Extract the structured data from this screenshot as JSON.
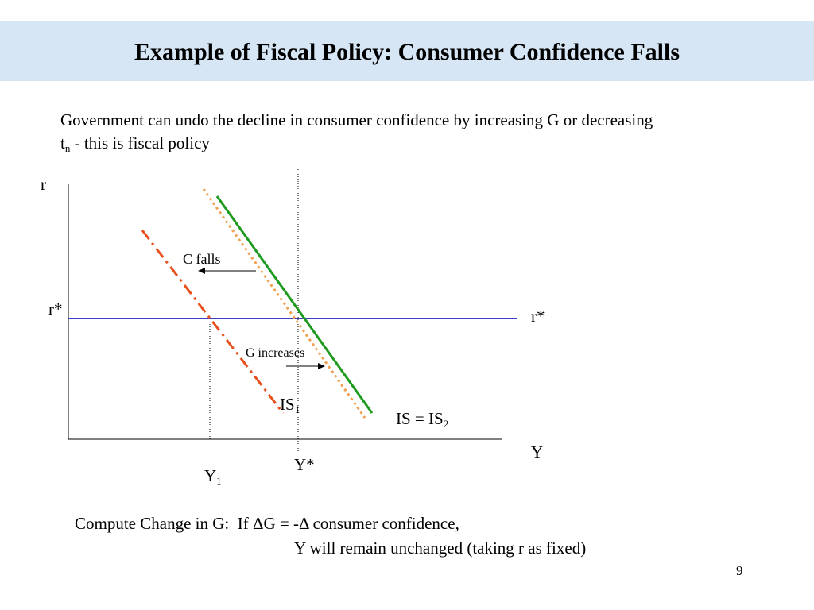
{
  "title": "Example of Fiscal Policy: Consumer Confidence Falls",
  "intro": {
    "line1": "Government can undo the decline in consumer confidence by increasing G or decreasing",
    "t_main": "t",
    "t_sub": "n",
    "line2_rest": " - this is fiscal policy"
  },
  "diagram": {
    "axis_r": "r",
    "axis_y": "Y",
    "r_star_left": "r*",
    "r_star_right": "r*",
    "c_falls": "C falls",
    "g_increases": "G increases",
    "is1_main": "IS",
    "is1_sub": "1",
    "is2_main": "IS = IS",
    "is2_sub": "2",
    "y1_main": "Y",
    "y1_sub": "1",
    "y_star": "Y*",
    "colors": {
      "rstar_line": "#3a3fc4",
      "is_original": "#1e9a1e",
      "is_shifted_left": "#e8501e",
      "is_shifted_back": "#f0a050"
    }
  },
  "footer": {
    "line1": "Compute Change in G:  If ΔG = -Δ consumer confidence,",
    "line2": "Y will remain unchanged (taking r as fixed)"
  },
  "page_number": "9"
}
